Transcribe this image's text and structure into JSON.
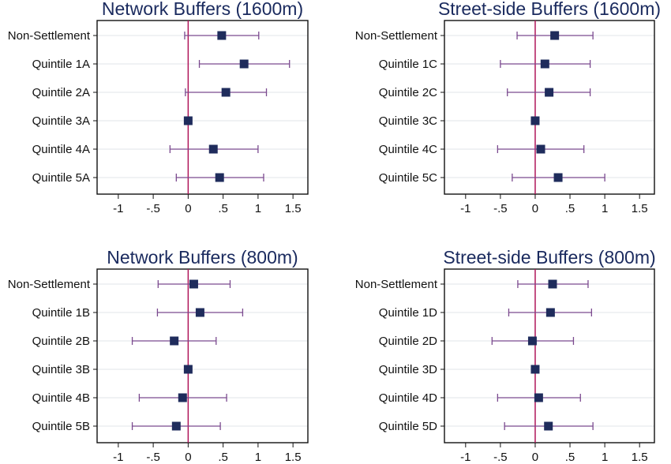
{
  "figure": {
    "colors": {
      "title": "#1a2a5e",
      "marker": "#1f2c5c",
      "ci": "#7b4a8f",
      "zero_line": "#b0155a",
      "grid": "#e2e6ea",
      "axis": "#111111"
    }
  },
  "chart_data": [
    {
      "type": "forest",
      "title": "Network Buffers (1600m)",
      "categories": [
        "Non-Settlement",
        "Quintile 1A",
        "Quintile 2A",
        "Quintile 3A",
        "Quintile 4A",
        "Quintile 5A"
      ],
      "estimates": [
        0.48,
        0.8,
        0.54,
        0.0,
        0.36,
        0.45
      ],
      "ci_low": [
        -0.05,
        0.16,
        -0.04,
        0.0,
        -0.26,
        -0.17
      ],
      "ci_high": [
        1.01,
        1.45,
        1.12,
        0.0,
        1.0,
        1.08
      ],
      "xlim": [
        -1.1,
        1.6
      ],
      "xticks": [
        -1,
        -0.5,
        0,
        0.5,
        1,
        1.5
      ],
      "xtick_labels": [
        "-1",
        "-.5",
        "0",
        ".5",
        "1",
        "1.5"
      ],
      "reference_line": 0,
      "grid": true
    },
    {
      "type": "forest",
      "title": "Street-side Buffers (1600m)",
      "categories": [
        "Non-Settlement",
        "Quintile 1C",
        "Quintile 2C",
        "Quintile 3C",
        "Quintile 4C",
        "Quintile 5C"
      ],
      "estimates": [
        0.28,
        0.14,
        0.2,
        0.0,
        0.08,
        0.33
      ],
      "ci_low": [
        -0.26,
        -0.5,
        -0.4,
        0.0,
        -0.54,
        -0.33
      ],
      "ci_high": [
        0.83,
        0.79,
        0.79,
        0.0,
        0.7,
        1.0
      ],
      "xlim": [
        -1.1,
        1.6
      ],
      "xticks": [
        -1,
        -0.5,
        0,
        0.5,
        1,
        1.5
      ],
      "xtick_labels": [
        "-1",
        "-.5",
        "0",
        ".5",
        "1",
        "1.5"
      ],
      "reference_line": 0,
      "grid": true
    },
    {
      "type": "forest",
      "title": "Network Buffers (800m)",
      "categories": [
        "Non-Settlement",
        "Quintile 1B",
        "Quintile 2B",
        "Quintile 3B",
        "Quintile 4B",
        "Quintile 5B"
      ],
      "estimates": [
        0.08,
        0.17,
        -0.2,
        0.0,
        -0.08,
        -0.17
      ],
      "ci_low": [
        -0.43,
        -0.44,
        -0.8,
        0.0,
        -0.7,
        -0.8
      ],
      "ci_high": [
        0.6,
        0.78,
        0.4,
        0.0,
        0.55,
        0.46
      ],
      "xlim": [
        -1.1,
        1.6
      ],
      "xticks": [
        -1,
        -0.5,
        0,
        0.5,
        1,
        1.5
      ],
      "xtick_labels": [
        "-1",
        "-.5",
        "0",
        ".5",
        "1",
        "1.5"
      ],
      "reference_line": 0,
      "grid": true
    },
    {
      "type": "forest",
      "title": "Street-side Buffers (800m)",
      "categories": [
        "Non-Settlement",
        "Quintile 1D",
        "Quintile 2D",
        "Quintile 3D",
        "Quintile 4D",
        "Quintile 5D"
      ],
      "estimates": [
        0.25,
        0.22,
        -0.04,
        0.0,
        0.05,
        0.19
      ],
      "ci_low": [
        -0.25,
        -0.38,
        -0.62,
        0.0,
        -0.54,
        -0.44
      ],
      "ci_high": [
        0.76,
        0.81,
        0.55,
        0.0,
        0.65,
        0.83
      ],
      "xlim": [
        -1.1,
        1.6
      ],
      "xticks": [
        -1,
        -0.5,
        0,
        0.5,
        1,
        1.5
      ],
      "xtick_labels": [
        "-1",
        "-.5",
        "0",
        ".5",
        "1",
        "1.5"
      ],
      "reference_line": 0,
      "grid": true
    }
  ]
}
